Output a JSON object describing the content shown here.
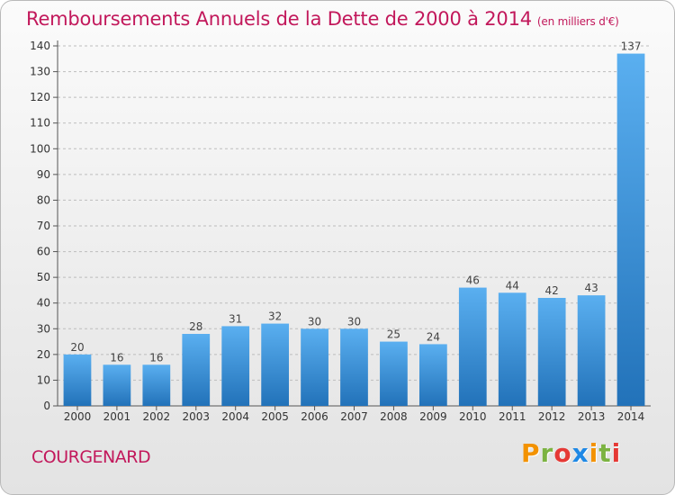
{
  "title": "Remboursements Annuels de la Dette de 2000 à 2014",
  "unit_note": "(en milliers d'€)",
  "commune": "COURGENARD",
  "brand": "Proxiti",
  "brand_colors": [
    "#f39200",
    "#7cb342",
    "#e53935",
    "#1e88e5",
    "#f39200",
    "#7cb342",
    "#e53935"
  ],
  "colors": {
    "accent_text": "#c2185b",
    "bar_light": "#5aaff0",
    "bar_dark": "#2272b9",
    "grid": "#bdbdbd"
  },
  "chart_data": {
    "type": "bar",
    "categories": [
      "2000",
      "2001",
      "2002",
      "2003",
      "2004",
      "2005",
      "2006",
      "2007",
      "2008",
      "2009",
      "2010",
      "2011",
      "2012",
      "2013",
      "2014"
    ],
    "values": [
      20,
      16,
      16,
      28,
      31,
      32,
      30,
      30,
      25,
      24,
      46,
      44,
      42,
      43,
      137
    ],
    "ylim": [
      0,
      140
    ],
    "yticks": [
      0,
      10,
      20,
      30,
      40,
      50,
      60,
      70,
      80,
      90,
      100,
      110,
      120,
      130,
      140
    ],
    "grid": true,
    "xlabel": "",
    "ylabel": ""
  }
}
